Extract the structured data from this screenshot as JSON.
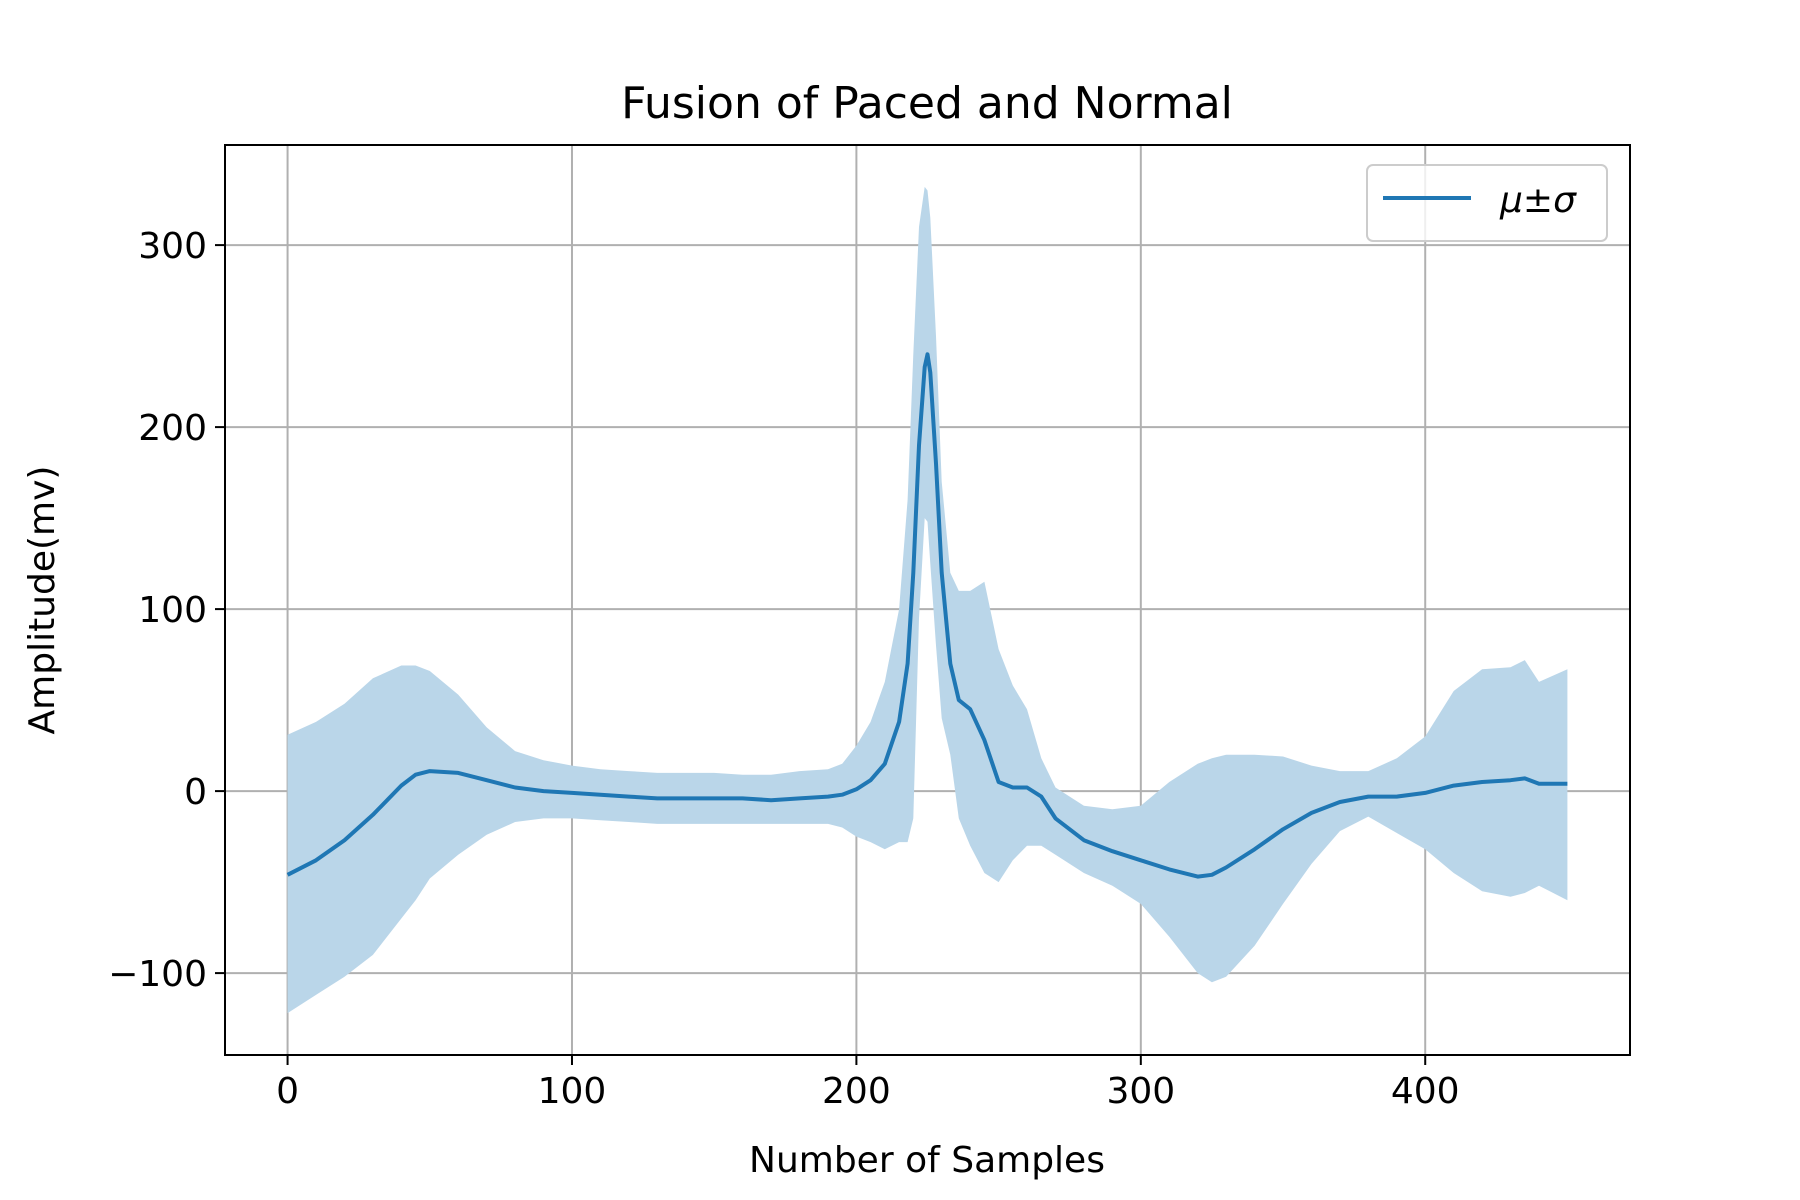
{
  "chart_data": {
    "type": "line",
    "title": "Fusion of Paced and Normal",
    "xlabel": "Number of Samples",
    "ylabel": "Amplitude(mv)",
    "xlim": [
      -22,
      472
    ],
    "ylim": [
      -145,
      355
    ],
    "xticks": [
      0,
      100,
      200,
      300,
      400
    ],
    "yticks": [
      -100,
      0,
      100,
      200,
      300
    ],
    "xtick_labels": [
      "0",
      "100",
      "200",
      "300",
      "400"
    ],
    "ytick_labels": [
      "−100",
      "0",
      "100",
      "200",
      "300"
    ],
    "grid": true,
    "legend": {
      "position": "top-right",
      "entries": [
        "μ±σ"
      ]
    },
    "colors": {
      "line": "#1f77b4",
      "band": "#bad6e9",
      "grid": "#b0b0b0"
    },
    "series": [
      {
        "name": "μ±σ",
        "x": [
          0,
          10,
          20,
          30,
          40,
          45,
          50,
          60,
          70,
          80,
          90,
          100,
          110,
          120,
          130,
          140,
          150,
          160,
          170,
          180,
          190,
          195,
          200,
          205,
          210,
          215,
          218,
          220,
          222,
          224,
          225,
          226,
          228,
          230,
          233,
          236,
          240,
          245,
          250,
          255,
          260,
          265,
          270,
          280,
          290,
          300,
          310,
          320,
          325,
          330,
          340,
          350,
          360,
          370,
          380,
          390,
          400,
          410,
          420,
          430,
          435,
          440,
          450
        ],
        "mean": [
          -46,
          -38,
          -27,
          -13,
          3,
          9,
          11,
          10,
          6,
          2,
          0,
          -1,
          -2,
          -3,
          -4,
          -4,
          -4,
          -4,
          -5,
          -4,
          -3,
          -2,
          1,
          6,
          15,
          38,
          70,
          120,
          190,
          233,
          240,
          230,
          180,
          120,
          70,
          50,
          45,
          28,
          5,
          2,
          2,
          -3,
          -15,
          -27,
          -33,
          -38,
          -43,
          -47,
          -46,
          -42,
          -32,
          -21,
          -12,
          -6,
          -3,
          -3,
          -1,
          3,
          5,
          6,
          7,
          4,
          4
        ],
        "upper": [
          31,
          38,
          48,
          62,
          69,
          69,
          66,
          53,
          35,
          22,
          17,
          14,
          12,
          11,
          10,
          10,
          10,
          9,
          9,
          11,
          12,
          15,
          25,
          38,
          60,
          100,
          160,
          240,
          310,
          332,
          330,
          315,
          250,
          170,
          120,
          110,
          110,
          115,
          78,
          58,
          45,
          18,
          2,
          -8,
          -10,
          -8,
          5,
          15,
          18,
          20,
          20,
          19,
          14,
          11,
          11,
          18,
          30,
          55,
          67,
          68,
          72,
          60,
          67
        ],
        "lower": [
          -122,
          -112,
          -102,
          -90,
          -70,
          -60,
          -48,
          -35,
          -24,
          -17,
          -15,
          -15,
          -16,
          -17,
          -18,
          -18,
          -18,
          -18,
          -18,
          -18,
          -18,
          -20,
          -25,
          -28,
          -32,
          -28,
          -28,
          -15,
          95,
          150,
          148,
          125,
          80,
          40,
          20,
          -15,
          -30,
          -45,
          -50,
          -38,
          -30,
          -30,
          -35,
          -45,
          -52,
          -62,
          -80,
          -100,
          -105,
          -102,
          -85,
          -62,
          -40,
          -22,
          -14,
          -23,
          -32,
          -45,
          -55,
          -58,
          -56,
          -52,
          -60
        ]
      }
    ]
  }
}
